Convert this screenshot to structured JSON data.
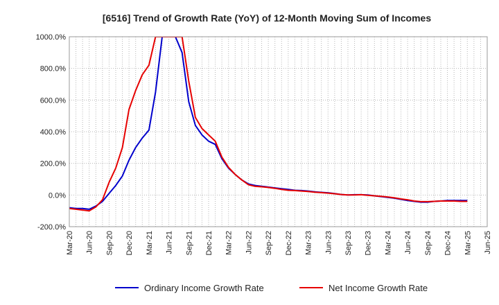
{
  "chart_data": {
    "type": "line",
    "title": "[6516]  Trend of Growth Rate (YoY) of 12-Month Moving Sum of Incomes",
    "xlabel": "",
    "ylabel": "",
    "ylim": [
      -200,
      1000
    ],
    "yticks": [
      -200,
      0,
      200,
      400,
      600,
      800,
      1000
    ],
    "ytick_labels": [
      "-200.0%",
      "0.0%",
      "200.0%",
      "400.0%",
      "600.0%",
      "800.0%",
      "1000.0%"
    ],
    "xtick_labels": [
      "Mar-20",
      "Jun-20",
      "Sep-20",
      "Dec-20",
      "Mar-21",
      "Jun-21",
      "Sep-21",
      "Dec-21",
      "Mar-22",
      "Jun-22",
      "Sep-22",
      "Dec-22",
      "Mar-23",
      "Jun-23",
      "Sep-23",
      "Dec-23",
      "Mar-24",
      "Jun-24",
      "Sep-24",
      "Dec-24",
      "Mar-25",
      "Jun-25"
    ],
    "x": [
      "Mar-20",
      "Apr-20",
      "May-20",
      "Jun-20",
      "Jul-20",
      "Aug-20",
      "Sep-20",
      "Oct-20",
      "Nov-20",
      "Dec-20",
      "Jan-21",
      "Feb-21",
      "Mar-21",
      "Apr-21",
      "May-21",
      "Jun-21",
      "Jul-21",
      "Aug-21",
      "Sep-21",
      "Oct-21",
      "Nov-21",
      "Dec-21",
      "Jan-22",
      "Feb-22",
      "Mar-22",
      "Apr-22",
      "May-22",
      "Jun-22",
      "Jul-22",
      "Aug-22",
      "Sep-22",
      "Oct-22",
      "Nov-22",
      "Dec-22",
      "Jan-23",
      "Feb-23",
      "Mar-23",
      "Apr-23",
      "May-23",
      "Jun-23",
      "Jul-23",
      "Aug-23",
      "Sep-23",
      "Oct-23",
      "Nov-23",
      "Dec-23",
      "Jan-24",
      "Feb-24",
      "Mar-24",
      "Apr-24",
      "May-24",
      "Jun-24",
      "Jul-24",
      "Aug-24",
      "Sep-24",
      "Oct-24",
      "Nov-24",
      "Dec-24",
      "Jan-25",
      "Feb-25",
      "Mar-25",
      "Apr-25",
      "May-25",
      "Jun-25"
    ],
    "grid": true,
    "legend_position": "bottom",
    "series": [
      {
        "name": "Ordinary Income Growth Rate",
        "color": "#0000cc",
        "values": [
          -80,
          -85,
          -85,
          -90,
          -70,
          -40,
          10,
          60,
          120,
          220,
          300,
          360,
          410,
          650,
          1000,
          1000,
          1000,
          900,
          590,
          440,
          380,
          340,
          320,
          230,
          170,
          130,
          95,
          70,
          60,
          55,
          50,
          45,
          40,
          35,
          30,
          28,
          25,
          20,
          17,
          14,
          9,
          3,
          0,
          2,
          2,
          0,
          -5,
          -10,
          -15,
          -20,
          -28,
          -35,
          -40,
          -45,
          -45,
          -40,
          -38,
          -35,
          -35,
          -35,
          -35,
          null,
          null,
          null
        ]
      },
      {
        "name": "Net Income Growth Rate",
        "color": "#e60000",
        "values": [
          -85,
          -90,
          -95,
          -100,
          -75,
          -30,
          80,
          170,
          300,
          540,
          660,
          760,
          820,
          1000,
          1000,
          1000,
          1000,
          1000,
          720,
          490,
          420,
          380,
          340,
          240,
          175,
          130,
          95,
          65,
          55,
          52,
          48,
          42,
          35,
          30,
          28,
          25,
          22,
          18,
          15,
          12,
          8,
          3,
          0,
          0,
          2,
          -2,
          -5,
          -8,
          -12,
          -18,
          -25,
          -30,
          -38,
          -42,
          -42,
          -40,
          -38,
          -38,
          -38,
          -40,
          -40,
          null,
          null,
          null
        ]
      }
    ]
  }
}
